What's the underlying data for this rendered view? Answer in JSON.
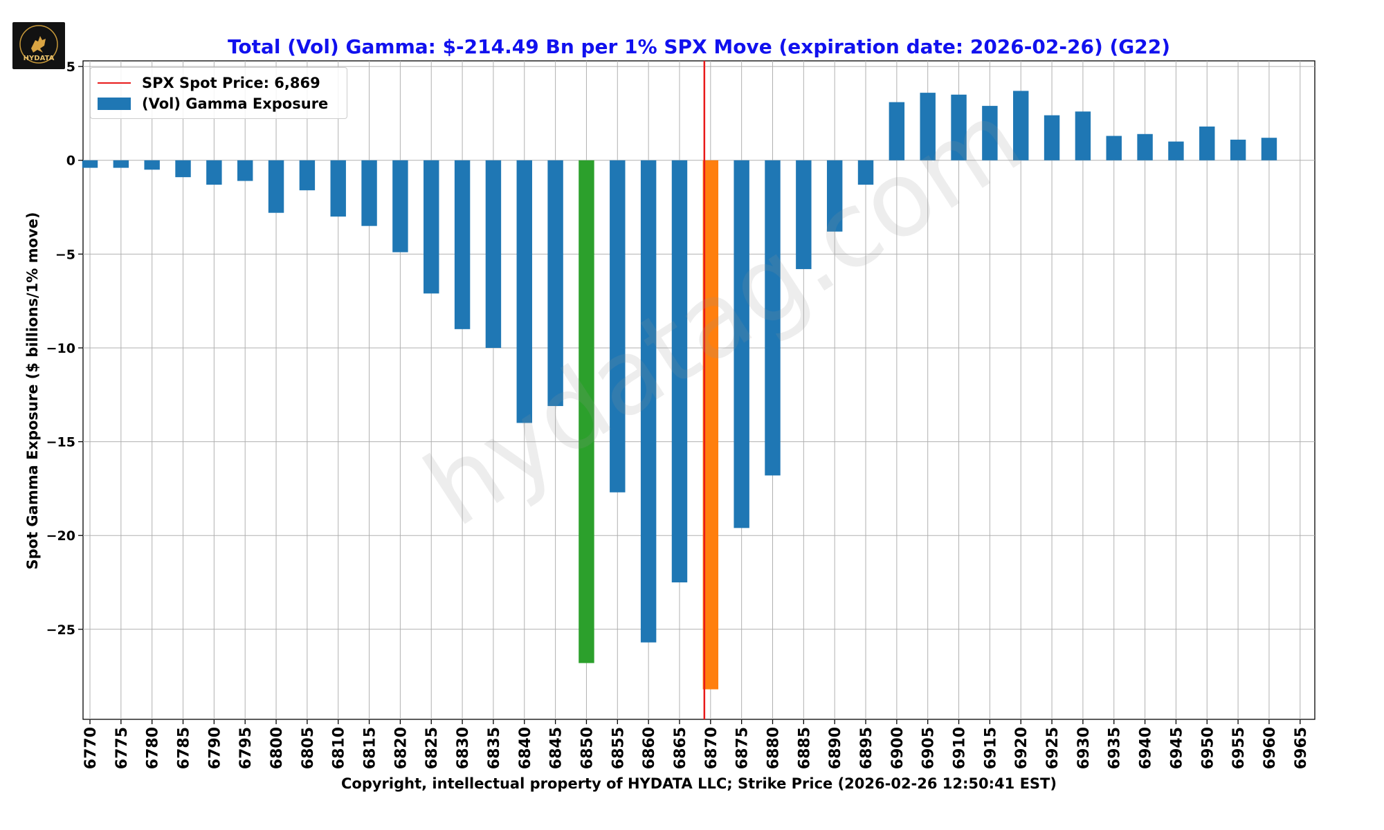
{
  "chart_data": {
    "type": "bar",
    "title": "Total (Vol) Gamma: $-214.49 Bn per 1% SPX Move (expiration date: 2026-02-26) (G22)",
    "xlabel": "Copyright, intellectual property of HYDATA LLC; Strike Price (2026-02-26 12:50:41 EST)",
    "ylabel": "Spot Gamma Exposure ($ billions/1% move)",
    "ylim": [
      -29.8,
      5.3
    ],
    "yticks": [
      5,
      0,
      -5,
      -10,
      -15,
      -20,
      -25
    ],
    "ytick_labels": [
      "5",
      "0",
      "−5",
      "−10",
      "−15",
      "−20",
      "−25"
    ],
    "grid": true,
    "legend_position": "top-left",
    "categories": [
      "6770",
      "6775",
      "6780",
      "6785",
      "6790",
      "6795",
      "6800",
      "6805",
      "6810",
      "6815",
      "6820",
      "6825",
      "6830",
      "6835",
      "6840",
      "6845",
      "6850",
      "6855",
      "6860",
      "6865",
      "6870",
      "6875",
      "6880",
      "6885",
      "6890",
      "6895",
      "6900",
      "6905",
      "6910",
      "6915",
      "6920",
      "6925",
      "6930",
      "6935",
      "6940",
      "6945",
      "6950",
      "6955",
      "6960",
      "6965"
    ],
    "series": [
      {
        "name": "(Vol) Gamma Exposure",
        "values": [
          -0.4,
          -0.4,
          -0.5,
          -0.9,
          -1.3,
          -1.1,
          -2.8,
          -1.6,
          -3.0,
          -3.5,
          -4.9,
          -7.1,
          -9.0,
          -10.0,
          -14.0,
          -13.1,
          -26.8,
          -17.7,
          -25.7,
          -22.5,
          -28.2,
          -19.6,
          -16.8,
          -5.8,
          -3.8,
          -1.3,
          3.1,
          3.6,
          3.5,
          2.9,
          3.7,
          2.4,
          2.6,
          1.3,
          1.4,
          1.0,
          1.8,
          1.1,
          1.2,
          0
        ],
        "colors": [
          "#1f77b4",
          "#1f77b4",
          "#1f77b4",
          "#1f77b4",
          "#1f77b4",
          "#1f77b4",
          "#1f77b4",
          "#1f77b4",
          "#1f77b4",
          "#1f77b4",
          "#1f77b4",
          "#1f77b4",
          "#1f77b4",
          "#1f77b4",
          "#1f77b4",
          "#1f77b4",
          "#2ca02c",
          "#1f77b4",
          "#1f77b4",
          "#1f77b4",
          "#ff7f0e",
          "#1f77b4",
          "#1f77b4",
          "#1f77b4",
          "#1f77b4",
          "#1f77b4",
          "#1f77b4",
          "#1f77b4",
          "#1f77b4",
          "#1f77b4",
          "#1f77b4",
          "#1f77b4",
          "#1f77b4",
          "#1f77b4",
          "#1f77b4",
          "#1f77b4",
          "#1f77b4",
          "#1f77b4",
          "#1f77b4",
          "#1f77b4"
        ]
      }
    ],
    "spot_line": {
      "label": "SPX Spot Price: 6,869",
      "x_value": 6869,
      "color": "#e8191a"
    },
    "title_color": "#1111ee"
  },
  "legend": {
    "spot_label": "SPX Spot Price: 6,869",
    "series_label": "(Vol) Gamma Exposure"
  },
  "watermark": "hydatag.com",
  "logo": {
    "text": "HYDATA"
  }
}
